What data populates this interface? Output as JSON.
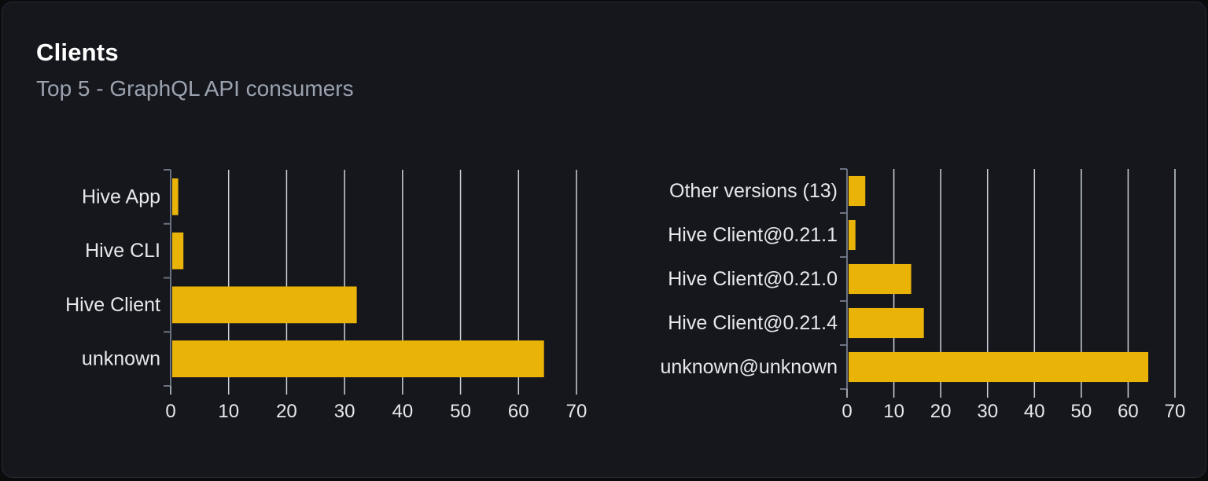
{
  "page": {
    "title": "Clients",
    "subtitle": "Top 5 - GraphQL API consumers"
  },
  "colors": {
    "bar": "#eab308",
    "grid": "#ccd1d9",
    "axis": "#6b7280",
    "category_label": "#e6e8eb",
    "tick_label": "#e6e8eb",
    "title": "#ffffff",
    "subtitle": "#9ca3af",
    "card_bg": "#15171d",
    "page_bg": "#0a0b0d"
  },
  "chart_data": [
    {
      "name": "clients-by-name",
      "type": "bar",
      "orientation": "horizontal",
      "title": "",
      "categories": [
        "Hive App",
        "Hive CLI",
        "Hive Client",
        "unknown"
      ],
      "values": [
        1.3,
        2.2,
        32.1,
        64.4
      ],
      "xlabel": "",
      "ylabel": "",
      "xlim": [
        0,
        70
      ],
      "xticks": [
        0,
        10,
        20,
        30,
        40,
        50,
        60,
        70
      ],
      "grid": true,
      "legend": false
    },
    {
      "name": "clients-by-version",
      "type": "bar",
      "orientation": "horizontal",
      "title": "",
      "categories": [
        "Other versions (13)",
        "Hive Client@0.21.1",
        "Hive Client@0.21.0",
        "Hive Client@0.21.4",
        "unknown@unknown"
      ],
      "values": [
        3.9,
        1.8,
        13.7,
        16.4,
        64.3
      ],
      "xlabel": "",
      "ylabel": "",
      "xlim": [
        0,
        70
      ],
      "xticks": [
        0,
        10,
        20,
        30,
        40,
        50,
        60,
        70
      ],
      "grid": true,
      "legend": false
    }
  ]
}
